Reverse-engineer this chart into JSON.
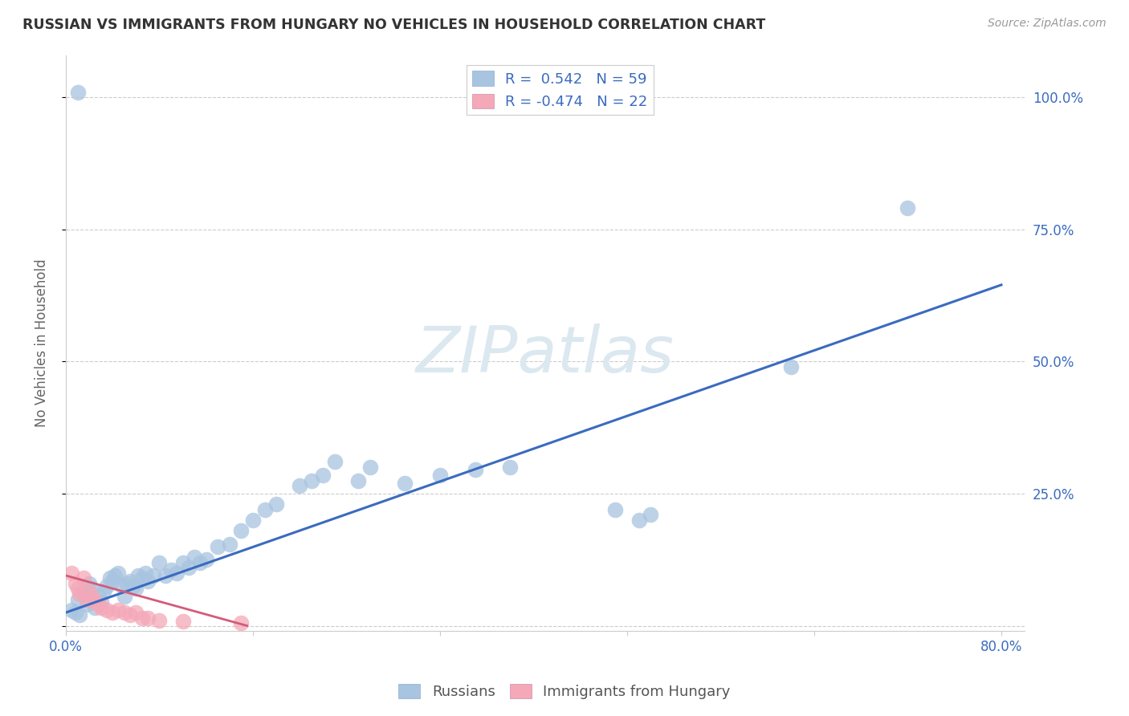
{
  "title": "RUSSIAN VS IMMIGRANTS FROM HUNGARY NO VEHICLES IN HOUSEHOLD CORRELATION CHART",
  "source": "Source: ZipAtlas.com",
  "ylabel": "No Vehicles in Household",
  "russian_R": 0.542,
  "russian_N": 59,
  "hungary_R": -0.474,
  "hungary_N": 22,
  "russian_color": "#a8c4e0",
  "hungary_color": "#f4a8b8",
  "russian_line_color": "#3a6bbf",
  "hungary_line_color": "#d45b7a",
  "legend_text_color": "#3a6bbf",
  "watermark_color": "#dce8f0",
  "background_color": "#ffffff",
  "grid_color": "#cccccc",
  "title_color": "#333333",
  "axis_label_color": "#3a6bbf",
  "russian_x": [
    0.005,
    0.008,
    0.01,
    0.012,
    0.015,
    0.018,
    0.02,
    0.022,
    0.025,
    0.028,
    0.03,
    0.032,
    0.035,
    0.038,
    0.04,
    0.042,
    0.045,
    0.048,
    0.05,
    0.052,
    0.055,
    0.058,
    0.06,
    0.062,
    0.065,
    0.068,
    0.07,
    0.075,
    0.08,
    0.085,
    0.09,
    0.095,
    0.1,
    0.105,
    0.11,
    0.115,
    0.12,
    0.13,
    0.14,
    0.15,
    0.16,
    0.17,
    0.18,
    0.2,
    0.21,
    0.22,
    0.23,
    0.25,
    0.26,
    0.29,
    0.32,
    0.35,
    0.38,
    0.47,
    0.49,
    0.5,
    0.62,
    0.72,
    0.01
  ],
  "russian_y": [
    0.03,
    0.025,
    0.05,
    0.02,
    0.06,
    0.04,
    0.08,
    0.07,
    0.035,
    0.055,
    0.045,
    0.065,
    0.075,
    0.09,
    0.085,
    0.095,
    0.1,
    0.075,
    0.055,
    0.08,
    0.085,
    0.075,
    0.07,
    0.095,
    0.09,
    0.1,
    0.085,
    0.095,
    0.12,
    0.095,
    0.105,
    0.1,
    0.12,
    0.11,
    0.13,
    0.12,
    0.125,
    0.15,
    0.155,
    0.18,
    0.2,
    0.22,
    0.23,
    0.265,
    0.275,
    0.285,
    0.31,
    0.275,
    0.3,
    0.27,
    0.285,
    0.295,
    0.3,
    0.22,
    0.2,
    0.21,
    0.49,
    0.79,
    1.01
  ],
  "hungary_x": [
    0.005,
    0.008,
    0.01,
    0.012,
    0.015,
    0.018,
    0.02,
    0.022,
    0.025,
    0.028,
    0.03,
    0.035,
    0.04,
    0.045,
    0.05,
    0.055,
    0.06,
    0.065,
    0.07,
    0.08,
    0.1,
    0.15
  ],
  "hungary_y": [
    0.1,
    0.08,
    0.07,
    0.06,
    0.09,
    0.05,
    0.065,
    0.055,
    0.045,
    0.04,
    0.035,
    0.03,
    0.025,
    0.03,
    0.025,
    0.02,
    0.025,
    0.015,
    0.015,
    0.01,
    0.008,
    0.005
  ],
  "rus_line_x": [
    0.0,
    0.8
  ],
  "rus_line_y": [
    0.025,
    0.645
  ],
  "hun_line_x": [
    0.0,
    0.155
  ],
  "hun_line_y": [
    0.095,
    0.0
  ],
  "xlim": [
    0.0,
    0.82
  ],
  "ylim": [
    -0.01,
    1.08
  ],
  "xtick_positions": [
    0.0,
    0.16,
    0.32,
    0.48,
    0.64,
    0.8
  ],
  "ytick_positions": [
    0.0,
    0.25,
    0.5,
    0.75,
    1.0
  ],
  "ytick_labels": [
    "",
    "25.0%",
    "50.0%",
    "75.0%",
    "100.0%"
  ]
}
